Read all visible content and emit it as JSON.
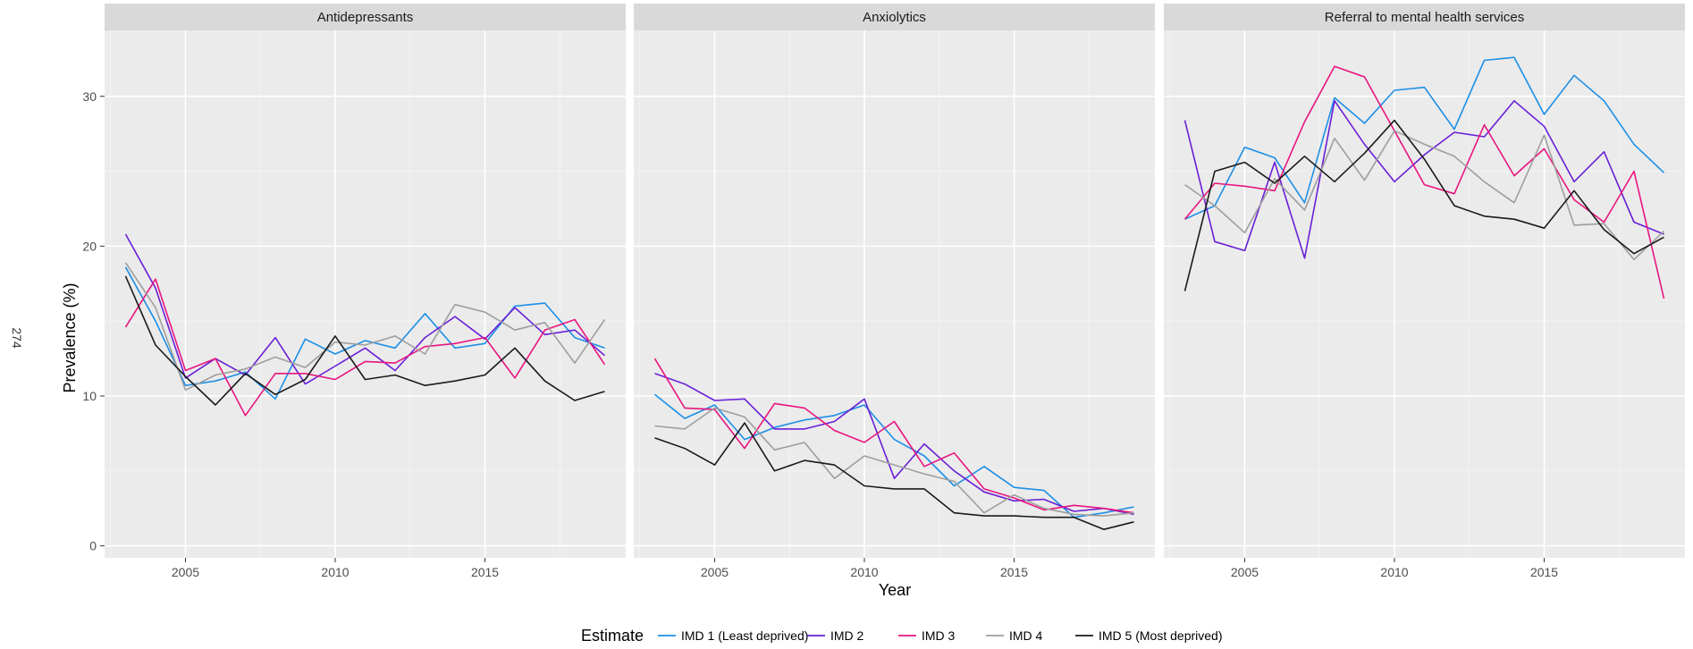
{
  "side_note": "274",
  "chart_data": {
    "type": "line",
    "xlabel": "Year",
    "ylabel": "Prevalence (%)",
    "xlim": [
      2002.3,
      2019.7
    ],
    "ylim": [
      -0.8,
      34.4
    ],
    "x_ticks": [
      2005,
      2010,
      2015
    ],
    "y_ticks": [
      0,
      10,
      20,
      30
    ],
    "grid": true,
    "legend": {
      "title": "Estimate",
      "position": "bottom",
      "entries": [
        "IMD 1 (Least deprived)",
        "IMD 2",
        "IMD 3",
        "IMD 4",
        "IMD 5 (Most deprived)"
      ]
    },
    "colors": {
      "IMD 1 (Least deprived)": "#1c8fe6",
      "IMD 2": "#6a1fd6",
      "IMD 3": "#e8157f",
      "IMD 4": "#9e9e9e",
      "IMD 5 (Most deprived)": "#1a1a1a"
    },
    "panels": [
      {
        "title": "Antidepressants",
        "x": [
          2003,
          2004,
          2005,
          2006,
          2007,
          2008,
          2009,
          2010,
          2011,
          2012,
          2013,
          2014,
          2015,
          2016,
          2017,
          2018,
          2019
        ],
        "series": [
          {
            "name": "IMD 1 (Least deprived)",
            "values": [
              18.6,
              15.0,
              10.7,
              11.0,
              11.6,
              9.8,
              13.8,
              12.8,
              13.7,
              13.2,
              15.5,
              13.2,
              13.5,
              16.0,
              16.2,
              13.9,
              13.2
            ]
          },
          {
            "name": "IMD 2",
            "values": [
              20.8,
              17.2,
              11.2,
              12.5,
              11.4,
              13.9,
              10.8,
              12.0,
              13.2,
              11.7,
              13.9,
              15.3,
              13.8,
              15.9,
              14.1,
              14.4,
              12.7
            ]
          },
          {
            "name": "IMD 3",
            "values": [
              14.6,
              17.8,
              11.7,
              12.5,
              8.7,
              11.5,
              11.5,
              11.1,
              12.3,
              12.2,
              13.3,
              13.5,
              13.9,
              11.2,
              14.4,
              15.1,
              12.1
            ]
          },
          {
            "name": "IMD 4",
            "values": [
              18.9,
              15.9,
              10.4,
              11.4,
              11.8,
              12.6,
              11.9,
              13.6,
              13.4,
              14.0,
              12.8,
              16.1,
              15.6,
              14.4,
              14.9,
              12.2,
              15.1
            ]
          },
          {
            "name": "IMD 5 (Most deprived)",
            "values": [
              18.0,
              13.4,
              11.3,
              9.4,
              11.5,
              10.1,
              11.1,
              14.0,
              11.1,
              11.4,
              10.7,
              11.0,
              11.4,
              13.2,
              11.0,
              9.7,
              10.3
            ]
          }
        ]
      },
      {
        "title": "Anxiolytics",
        "x": [
          2003,
          2004,
          2005,
          2006,
          2007,
          2008,
          2009,
          2010,
          2011,
          2012,
          2013,
          2014,
          2015,
          2016,
          2017,
          2018,
          2019
        ],
        "series": [
          {
            "name": "IMD 1 (Least deprived)",
            "values": [
              10.1,
              8.5,
              9.4,
              7.1,
              7.9,
              8.4,
              8.7,
              9.4,
              7.1,
              6.0,
              4.0,
              5.3,
              3.9,
              3.7,
              1.9,
              2.2,
              2.6
            ]
          },
          {
            "name": "IMD 2",
            "values": [
              11.5,
              10.8,
              9.7,
              9.8,
              7.8,
              7.8,
              8.3,
              9.8,
              4.5,
              6.8,
              5.0,
              3.6,
              3.0,
              3.1,
              2.3,
              2.5,
              2.1
            ]
          },
          {
            "name": "IMD 3",
            "values": [
              12.5,
              9.2,
              9.1,
              6.5,
              9.5,
              9.2,
              7.7,
              6.9,
              8.3,
              5.3,
              6.2,
              3.8,
              3.2,
              2.4,
              2.7,
              2.5,
              2.2
            ]
          },
          {
            "name": "IMD 4",
            "values": [
              8.0,
              7.8,
              9.2,
              8.6,
              6.4,
              6.9,
              4.5,
              6.0,
              5.4,
              4.8,
              4.3,
              2.2,
              3.4,
              2.5,
              2.1,
              2.0,
              2.2
            ]
          },
          {
            "name": "IMD 5 (Most deprived)",
            "values": [
              7.2,
              6.5,
              5.4,
              8.2,
              5.0,
              5.7,
              5.4,
              4.0,
              3.8,
              3.8,
              2.2,
              2.0,
              2.0,
              1.9,
              1.9,
              1.1,
              1.6
            ]
          }
        ]
      },
      {
        "title": "Referral to mental health services",
        "x": [
          2003,
          2004,
          2005,
          2006,
          2007,
          2008,
          2009,
          2010,
          2011,
          2012,
          2013,
          2014,
          2015,
          2016,
          2017,
          2018,
          2019
        ],
        "series": [
          {
            "name": "IMD 1 (Least deprived)",
            "values": [
              21.8,
              22.7,
              26.6,
              25.9,
              22.9,
              29.9,
              28.2,
              30.4,
              30.6,
              27.8,
              32.4,
              32.6,
              28.8,
              31.4,
              29.7,
              26.8,
              24.9
            ]
          },
          {
            "name": "IMD 2",
            "values": [
              28.4,
              20.3,
              19.7,
              25.6,
              19.2,
              29.7,
              26.8,
              24.3,
              26.1,
              27.6,
              27.3,
              29.7,
              28.0,
              24.3,
              26.3,
              21.6,
              20.8
            ]
          },
          {
            "name": "IMD 3",
            "values": [
              21.8,
              24.2,
              24.0,
              23.7,
              28.3,
              32.0,
              31.3,
              27.7,
              24.1,
              23.5,
              28.1,
              24.7,
              26.5,
              23.1,
              21.6,
              25.0,
              16.5
            ]
          },
          {
            "name": "IMD 4",
            "values": [
              24.1,
              22.7,
              20.9,
              24.5,
              22.4,
              27.2,
              24.4,
              27.7,
              26.8,
              26.0,
              24.3,
              22.9,
              27.4,
              21.4,
              21.5,
              19.1,
              21.0
            ]
          },
          {
            "name": "IMD 5 (Most deprived)",
            "values": [
              17.0,
              25.0,
              25.6,
              24.2,
              26.0,
              24.3,
              26.2,
              28.4,
              25.8,
              22.7,
              22.0,
              21.8,
              21.2,
              23.7,
              21.1,
              19.5,
              20.6
            ]
          }
        ]
      }
    ]
  }
}
